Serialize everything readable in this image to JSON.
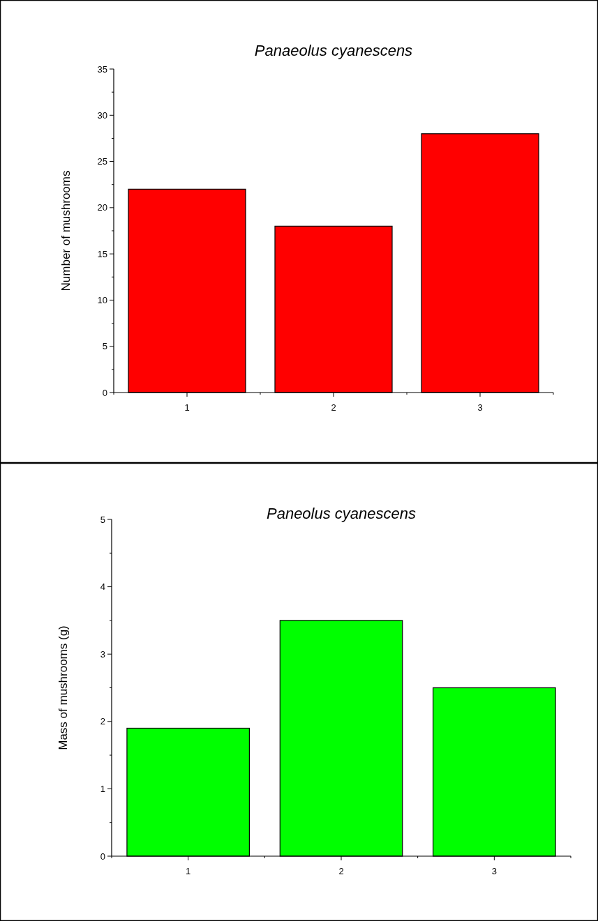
{
  "chart_data": [
    {
      "type": "bar",
      "title": "Panaeolus cyanescens",
      "ylabel": "Number of mushrooms",
      "categories": [
        "1",
        "2",
        "3"
      ],
      "values": [
        22,
        18,
        28
      ],
      "color": "#ff0000",
      "ylim": [
        0,
        35
      ],
      "yticks": [
        0,
        {
          "value": 2.5,
          "label": null
        },
        5,
        {
          "value": 7.5,
          "label": null
        },
        10,
        {
          "value": 12.5,
          "label": null
        },
        15,
        {
          "value": 17.5,
          "label": null
        },
        20,
        {
          "value": 22.5,
          "label": null
        },
        25,
        {
          "value": 27.5,
          "label": null
        },
        30,
        {
          "value": 32.5,
          "label": null
        },
        35
      ],
      "grid": false
    },
    {
      "type": "bar",
      "title": "Paneolus cyanescens",
      "ylabel": "Mass of mushrooms (g)",
      "categories": [
        "1",
        "2",
        "3"
      ],
      "values": [
        1.9,
        3.5,
        2.5
      ],
      "color": "#00ff00",
      "ylim": [
        0,
        5
      ],
      "yticks": [
        0,
        {
          "value": 0.5,
          "label": null
        },
        1,
        {
          "value": 1.5,
          "label": null
        },
        2,
        {
          "value": 2.5,
          "label": null
        },
        3,
        {
          "value": 3.5,
          "label": null
        },
        4,
        {
          "value": 4.5,
          "label": null
        },
        5
      ],
      "grid": false
    }
  ]
}
